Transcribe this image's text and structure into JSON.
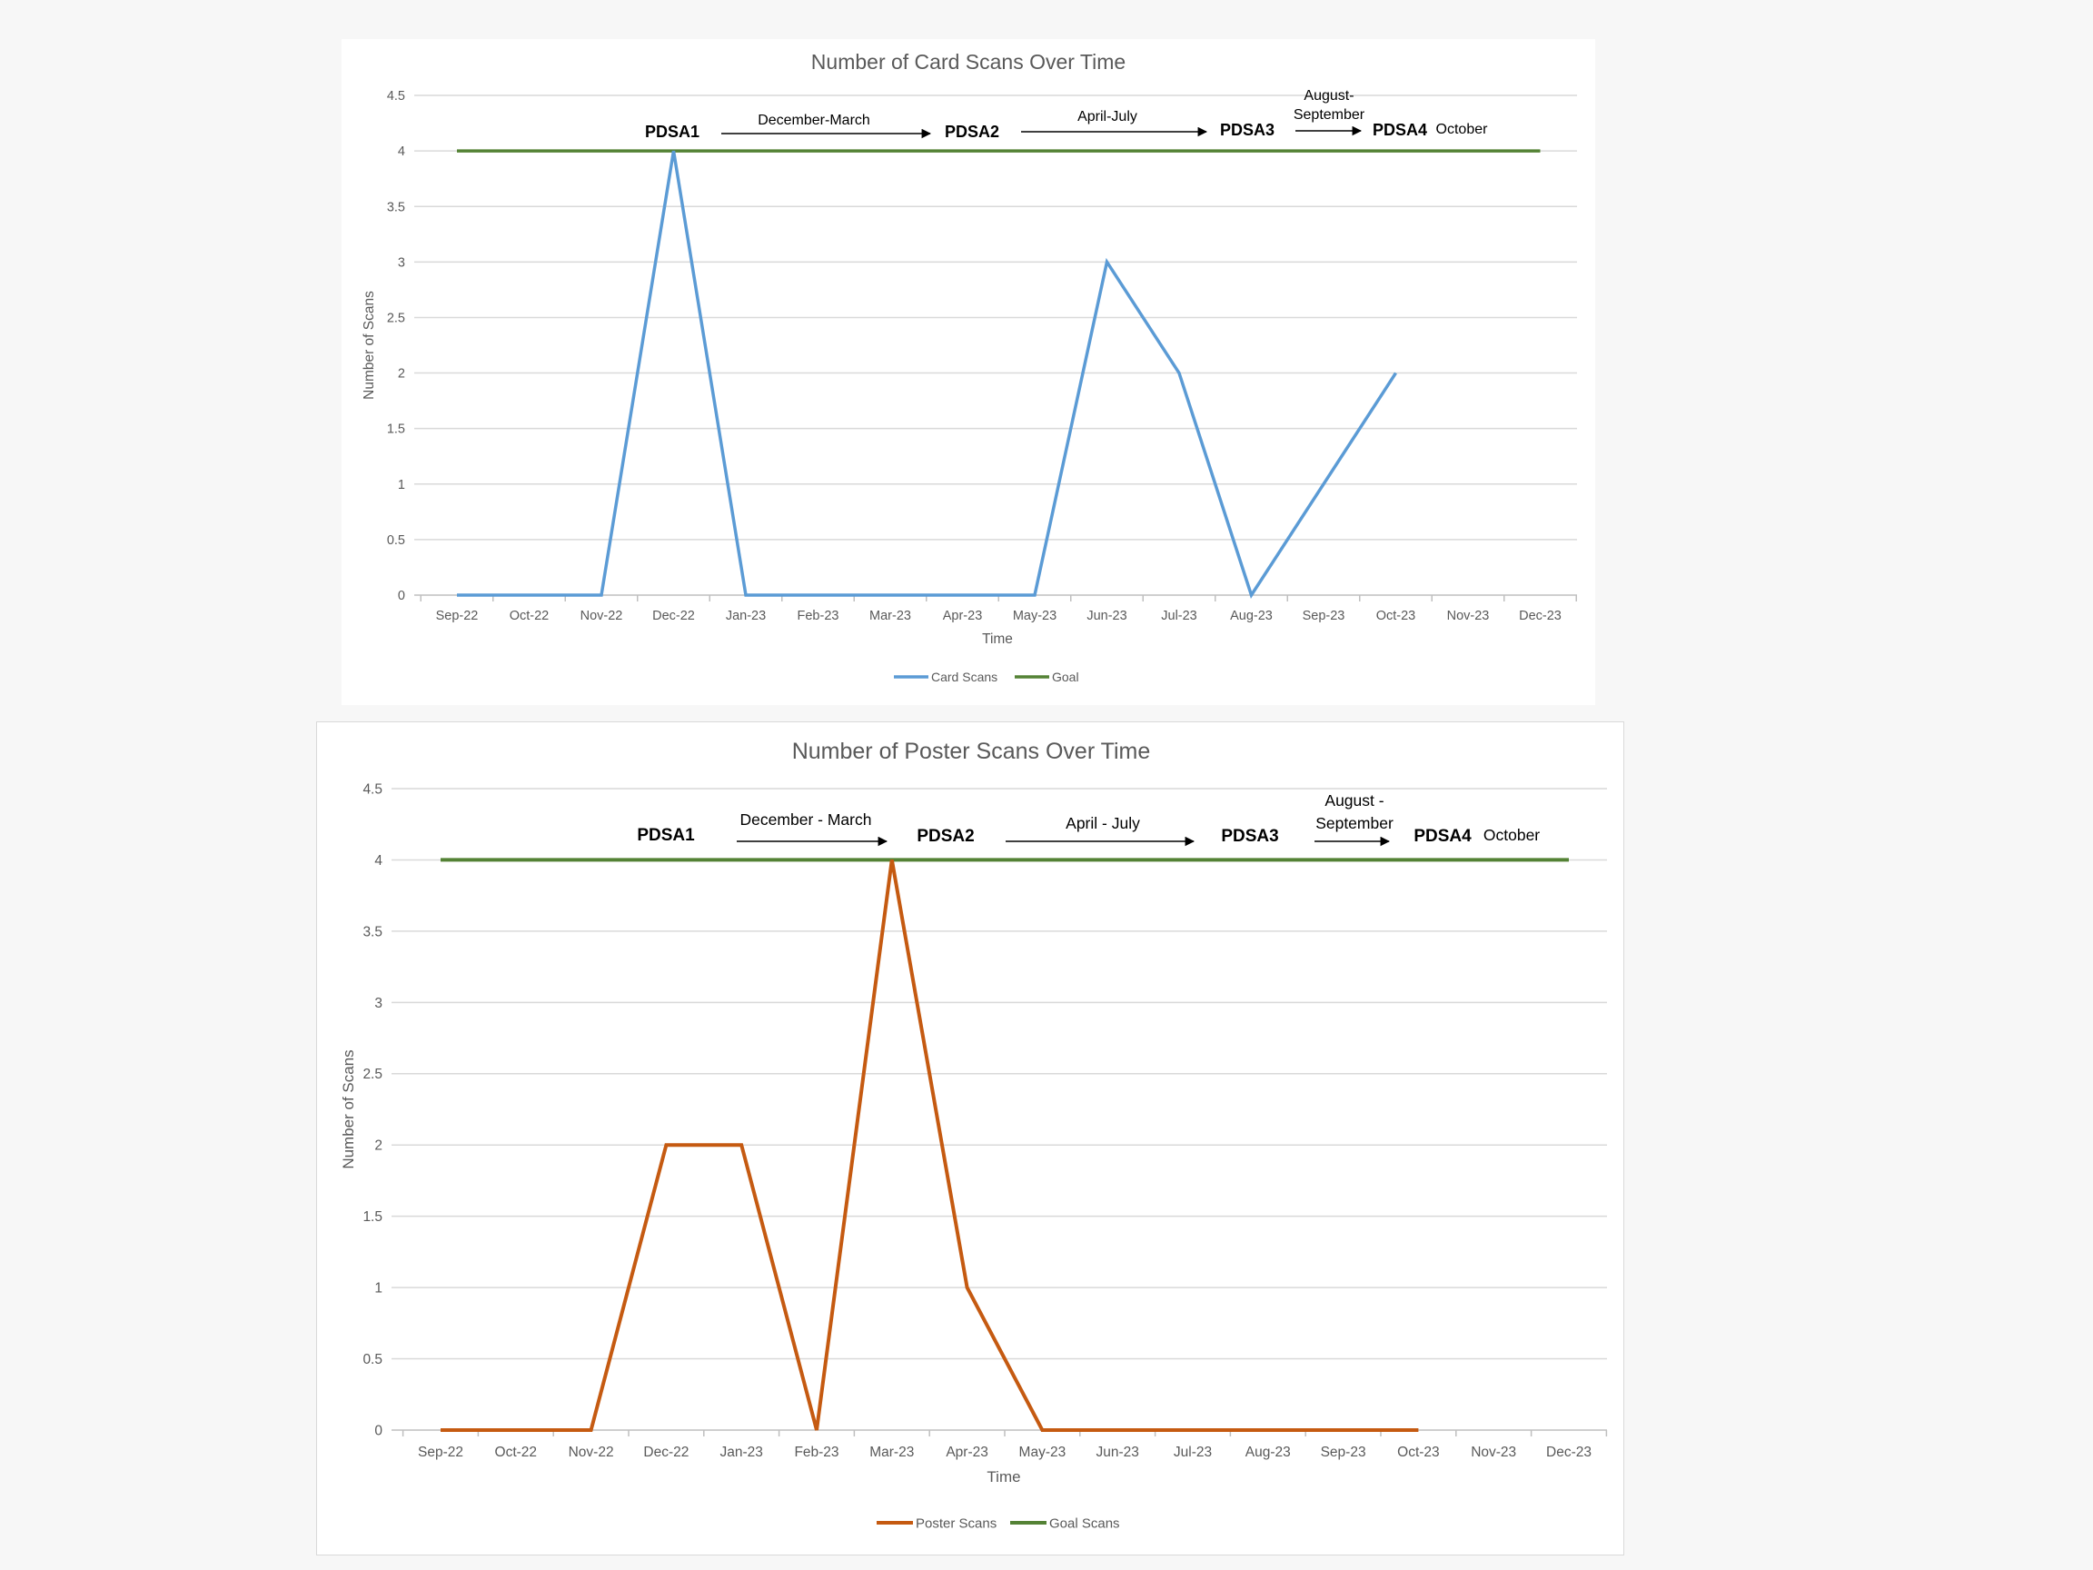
{
  "chart_data": [
    {
      "type": "line",
      "title": "Number of Card Scans Over Time",
      "xlabel": "Time",
      "ylabel": "Number of Scans",
      "ylim": [
        0,
        4.5
      ],
      "yticks": [
        "0",
        "0.5",
        "1",
        "1.5",
        "2",
        "2.5",
        "3",
        "3.5",
        "4",
        "4.5"
      ],
      "categories": [
        "Sep-22",
        "Oct-22",
        "Nov-22",
        "Dec-22",
        "Jan-23",
        "Feb-23",
        "Mar-23",
        "Apr-23",
        "May-23",
        "Jun-23",
        "Jul-23",
        "Aug-23",
        "Sep-23",
        "Oct-23",
        "Nov-23",
        "Dec-23"
      ],
      "series": [
        {
          "name": "Card Scans",
          "color": "#5b9bd5",
          "values": [
            0,
            0,
            0,
            4,
            0,
            0,
            0,
            0,
            0,
            3,
            2,
            0,
            1,
            2,
            null,
            null
          ]
        },
        {
          "name": "Goal",
          "color": "#548235",
          "values": [
            4,
            4,
            4,
            4,
            4,
            4,
            4,
            4,
            4,
            4,
            4,
            4,
            4,
            4,
            4,
            4
          ]
        }
      ],
      "grid": true,
      "legend": "bottom",
      "annotations": {
        "pdsa1": "PDSA1",
        "range1": "December-March",
        "pdsa2": "PDSA2",
        "range2": "April-July",
        "pdsa3": "PDSA3",
        "range3_line1": "August-",
        "range3_line2": "September",
        "pdsa4": "PDSA4",
        "range4": "October"
      }
    },
    {
      "type": "line",
      "title": "Number of Poster Scans Over Time",
      "xlabel": "Time",
      "ylabel": "Number of Scans",
      "ylim": [
        0,
        4.5
      ],
      "yticks": [
        "0",
        "0.5",
        "1",
        "1.5",
        "2",
        "2.5",
        "3",
        "3.5",
        "4",
        "4.5"
      ],
      "categories": [
        "Sep-22",
        "Oct-22",
        "Nov-22",
        "Dec-22",
        "Jan-23",
        "Feb-23",
        "Mar-23",
        "Apr-23",
        "May-23",
        "Jun-23",
        "Jul-23",
        "Aug-23",
        "Sep-23",
        "Oct-23",
        "Nov-23",
        "Dec-23"
      ],
      "series": [
        {
          "name": "Poster Scans",
          "color": "#c55a11",
          "values": [
            0,
            0,
            0,
            2,
            2,
            0,
            4,
            1,
            0,
            0,
            0,
            0,
            0,
            0,
            null,
            null
          ]
        },
        {
          "name": "Goal Scans",
          "color": "#548235",
          "values": [
            4,
            4,
            4,
            4,
            4,
            4,
            4,
            4,
            4,
            4,
            4,
            4,
            4,
            4,
            4,
            4
          ]
        }
      ],
      "grid": true,
      "legend": "bottom",
      "annotations": {
        "pdsa1": "PDSA1",
        "range1": "December - March",
        "pdsa2": "PDSA2",
        "range2": "April - July",
        "pdsa3": "PDSA3",
        "range3_line1": "August -",
        "range3_line2": "September",
        "pdsa4": "PDSA4",
        "range4": "October"
      }
    }
  ]
}
